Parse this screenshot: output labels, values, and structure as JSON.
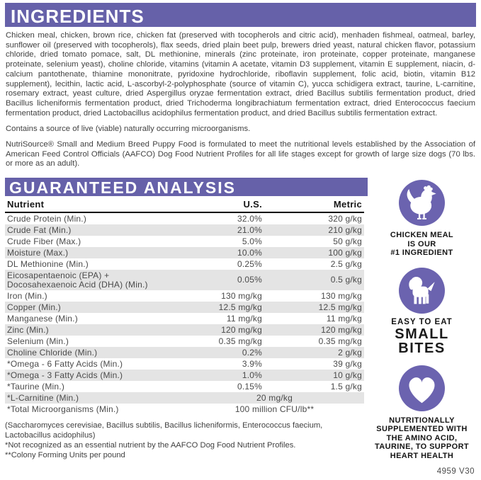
{
  "colors": {
    "brand_purple": "#6661A9",
    "badge_purple": "#6B63AF",
    "stripe_gray": "#E4E4E4"
  },
  "ingredients": {
    "title": "INGREDIENTS",
    "paragraph": "Chicken meal, chicken, brown rice, chicken fat (preserved with tocopherols and citric acid), menhaden fishmeal, oatmeal, barley, sunflower oil (preserved with tocopherols), flax seeds, dried plain beet pulp, brewers dried yeast, natural chicken flavor, potassium chloride, dried tomato pomace, salt, DL methionine, minerals (zinc proteinate, iron proteinate, copper proteinate, manganese proteinate, selenium yeast), choline chloride, vitamins (vitamin A acetate, vitamin D3 supplement, vitamin E supplement, niacin, d-calcium pantothenate, thiamine mononitrate, pyridoxine hydrochloride, riboflavin supplement, folic acid, biotin, vitamin B12 supplement), lecithin, lactic acid, L-ascorbyl-2-polyphosphate (source of vitamin C), yucca schidigera extract, taurine, L-carnitine, rosemary extract, yeast culture, dried Aspergillus oryzae fermentation extract, dried Bacillus subtilis fermentation product, dried Bacillus licheniformis fermentation product, dried Trichoderma longibrachiatum fermentation extract, dried Enterococcus faecium fermentation product, dried Lactobacillus acidophilus fermentation product, and dried Bacillus subtilis fermentation extract.",
    "microorganisms_note": "Contains a source of live (viable) naturally occurring microorganisms.",
    "aafco_statement": "NutriSource® Small and Medium Breed Puppy Food is formulated to meet the nutritional levels established by the Association of American Feed Control Officials (AAFCO) Dog Food Nutrient Profiles for all life stages except for growth of large size dogs (70 lbs. or more as an adult)."
  },
  "guaranteed_analysis": {
    "title": "GUARANTEED ANALYSIS",
    "columns": [
      "Nutrient",
      "U.S.",
      "Metric"
    ],
    "rows": [
      {
        "name": "Crude Protein (Min.)",
        "us": "32.0%",
        "metric": "320 g/kg"
      },
      {
        "name": "Crude Fat (Min.)",
        "us": "21.0%",
        "metric": "210 g/kg"
      },
      {
        "name": "Crude Fiber (Max.)",
        "us": "5.0%",
        "metric": "50 g/kg"
      },
      {
        "name": "Moisture (Max.)",
        "us": "10.0%",
        "metric": "100 g/kg"
      },
      {
        "name": "DL Methionine (Min.)",
        "us": "0.25%",
        "metric": "2.5 g/kg"
      },
      {
        "name": "Eicosapentaenoic (EPA) +\nDocosahexaenoic Acid (DHA) (Min.)",
        "us": "0.05%",
        "metric": "0.5 g/kg"
      },
      {
        "name": "Iron (Min.)",
        "us": "130 mg/kg",
        "metric": "130 mg/kg"
      },
      {
        "name": "Copper (Min.)",
        "us": "12.5 mg/kg",
        "metric": "12.5 mg/kg"
      },
      {
        "name": "Manganese (Min.)",
        "us": "11 mg/kg",
        "metric": "11 mg/kg"
      },
      {
        "name": "Zinc (Min.)",
        "us": "120 mg/kg",
        "metric": "120 mg/kg"
      },
      {
        "name": "Selenium (Min.)",
        "us": "0.35 mg/kg",
        "metric": "0.35 mg/kg"
      },
      {
        "name": "Choline Chloride (Min.)",
        "us": "0.2%",
        "metric": "2 g/kg"
      },
      {
        "name": "*Omega - 6 Fatty Acids (Min.)",
        "us": "3.9%",
        "metric": "39 g/kg"
      },
      {
        "name": "*Omega - 3 Fatty Acids (Min.)",
        "us": "1.0%",
        "metric": "10 g/kg"
      },
      {
        "name": "*Taurine (Min.)",
        "us": "0.15%",
        "metric": "1.5 g/kg"
      },
      {
        "name": "*L-Carnitine (Min.)",
        "value_span": "20 mg/kg"
      },
      {
        "name": "*Total Microorganisms (Min.)",
        "value_span": "100 million CFU/lb**"
      }
    ],
    "footnotes": [
      "(Saccharomyces cerevisiae, Bacillus subtilis, Bacillus licheniformis, Enterococcus faecium,\nLactobacillus acidophilus)",
      "*Not recognized as an essential nutrient by the AAFCO Dog Food Nutrient Profiles.",
      "**Colony Forming Units per pound"
    ]
  },
  "badges": [
    {
      "icon": "chicken-icon",
      "caption": "CHICKEN MEAL\nIS OUR\n#1 INGREDIENT"
    },
    {
      "icon": "puppy-icon",
      "caption_top": "EASY TO EAT",
      "caption_main": "SMALL\nBITES"
    },
    {
      "icon": "heart-icon",
      "caption": "NUTRITIONALLY\nSUPPLEMENTED WITH\nTHE AMINO ACID,\nTAURINE, TO SUPPORT\nHEART HEALTH"
    }
  ],
  "doc_code": "4959 V30"
}
